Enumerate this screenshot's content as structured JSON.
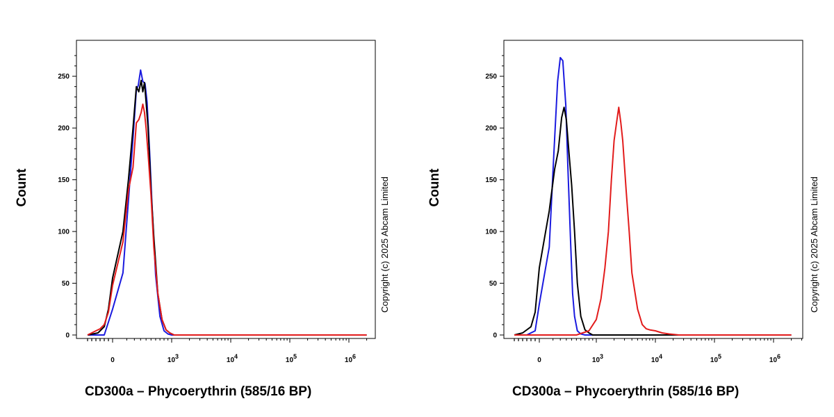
{
  "colors": {
    "blue": "#1a1adf",
    "black": "#000000",
    "red": "#e21b1b"
  },
  "chart_data": [
    {
      "type": "line",
      "xlabel": "CD300a – Phycoerythrin (585/16 BP)",
      "ylabel": "Count",
      "copyright": "Copyright (c) 2025 Abcam Limited",
      "x_scale": "biexponential",
      "xlim": [
        -600,
        2000000
      ],
      "ylim": [
        0,
        275
      ],
      "y_ticks": [
        "0",
        "50",
        "100",
        "150",
        "200",
        "250"
      ],
      "x_ticks": [
        "0",
        "10^3",
        "10^4",
        "10^5",
        "10^6"
      ],
      "series": [
        {
          "color": "blue",
          "x": [
            -600,
            -200,
            0,
            60,
            120,
            180,
            230,
            260,
            300,
            340,
            380,
            420,
            470,
            520,
            600,
            700,
            800,
            900,
            1000,
            1200,
            2000000
          ],
          "y": [
            0,
            0,
            25,
            60,
            130,
            190,
            237,
            241,
            256,
            245,
            243,
            225,
            178,
            126,
            58,
            18,
            4,
            1,
            0,
            0,
            0
          ]
        },
        {
          "color": "black",
          "x": [
            -600,
            -350,
            -200,
            -100,
            0,
            60,
            120,
            180,
            230,
            270,
            310,
            340,
            370,
            400,
            440,
            500,
            560,
            650,
            750,
            850,
            950,
            1100,
            2000000
          ],
          "y": [
            0,
            2,
            8,
            25,
            55,
            100,
            150,
            200,
            240,
            235,
            246,
            235,
            244,
            225,
            200,
            140,
            95,
            40,
            15,
            5,
            2,
            0,
            0
          ]
        },
        {
          "color": "red",
          "x": [
            -600,
            -500,
            -400,
            -300,
            -200,
            -100,
            0,
            60,
            120,
            180,
            230,
            270,
            310,
            340,
            370,
            400,
            440,
            500,
            560,
            650,
            750,
            850,
            950,
            1100,
            2000000
          ],
          "y": [
            0,
            2,
            4,
            6,
            10,
            22,
            48,
            90,
            140,
            162,
            205,
            208,
            215,
            223,
            215,
            200,
            175,
            135,
            85,
            40,
            15,
            5,
            2,
            0,
            0
          ]
        }
      ]
    },
    {
      "type": "line",
      "xlabel": "CD300a – Phycoerythrin (585/16 BP)",
      "ylabel": "Count",
      "copyright": "Copyright (c) 2025 Abcam Limited",
      "x_scale": "biexponential",
      "xlim": [
        -600,
        2000000
      ],
      "ylim": [
        0,
        275
      ],
      "y_ticks": [
        "0",
        "50",
        "100",
        "150",
        "200",
        "250"
      ],
      "x_ticks": [
        "0",
        "10^3",
        "10^4",
        "10^5",
        "10^6"
      ],
      "series": [
        {
          "color": "blue",
          "x": [
            -600,
            -300,
            -100,
            0,
            60,
            110,
            160,
            200,
            240,
            290,
            330,
            380,
            420,
            460,
            520,
            600,
            700,
            900,
            2000000
          ],
          "y": [
            0,
            0,
            4,
            30,
            85,
            175,
            245,
            268,
            265,
            222,
            160,
            90,
            40,
            18,
            4,
            1,
            0,
            0,
            0
          ]
        },
        {
          "color": "black",
          "x": [
            -600,
            -400,
            -200,
            -100,
            0,
            60,
            120,
            170,
            220,
            260,
            300,
            350,
            400,
            460,
            520,
            600,
            700,
            800,
            900,
            1100,
            2000000
          ],
          "y": [
            0,
            2,
            8,
            22,
            65,
            120,
            160,
            178,
            210,
            220,
            208,
            175,
            145,
            100,
            50,
            18,
            5,
            2,
            0,
            0,
            0
          ]
        },
        {
          "color": "red",
          "x": [
            -600,
            500,
            800,
            1000,
            1200,
            1400,
            1600,
            1800,
            2000,
            2200,
            2400,
            2600,
            2800,
            3200,
            3600,
            4000,
            5000,
            6000,
            7000,
            8000,
            10000,
            13000,
            17000,
            25000,
            2000000
          ],
          "y": [
            0,
            0,
            4,
            15,
            35,
            65,
            100,
            150,
            188,
            205,
            220,
            205,
            188,
            140,
            100,
            60,
            25,
            10,
            6,
            5,
            4,
            2,
            1,
            0,
            0
          ]
        }
      ]
    }
  ]
}
